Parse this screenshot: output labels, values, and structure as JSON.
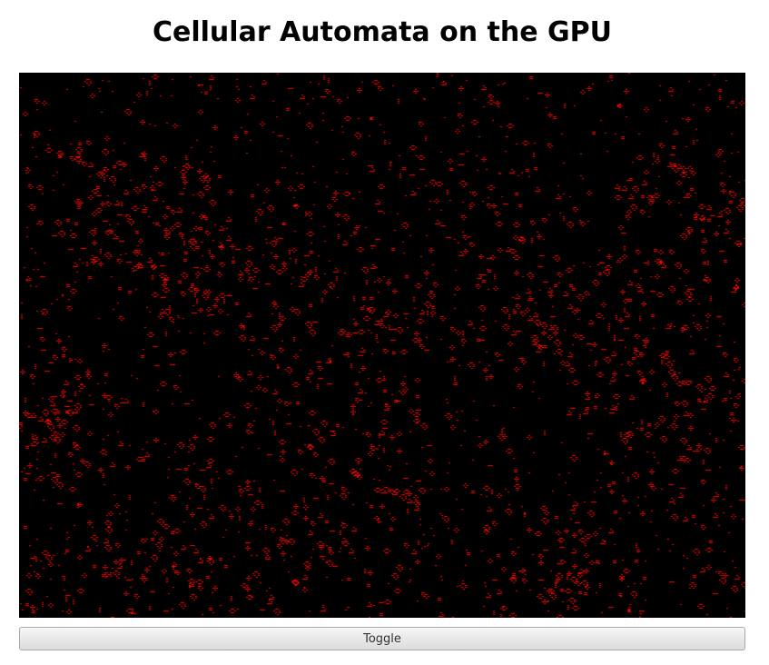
{
  "page": {
    "title": "Cellular Automata on the GPU"
  },
  "simulation": {
    "background_color": "#000000",
    "cell_color": "#ff0000",
    "cell_size_px": 1,
    "pattern": "sparse Game-of-Life style red cell clusters (blinkers, blocks, loaves, gliders) scattered over a black grid"
  },
  "controls": {
    "toggle_label": "Toggle"
  }
}
